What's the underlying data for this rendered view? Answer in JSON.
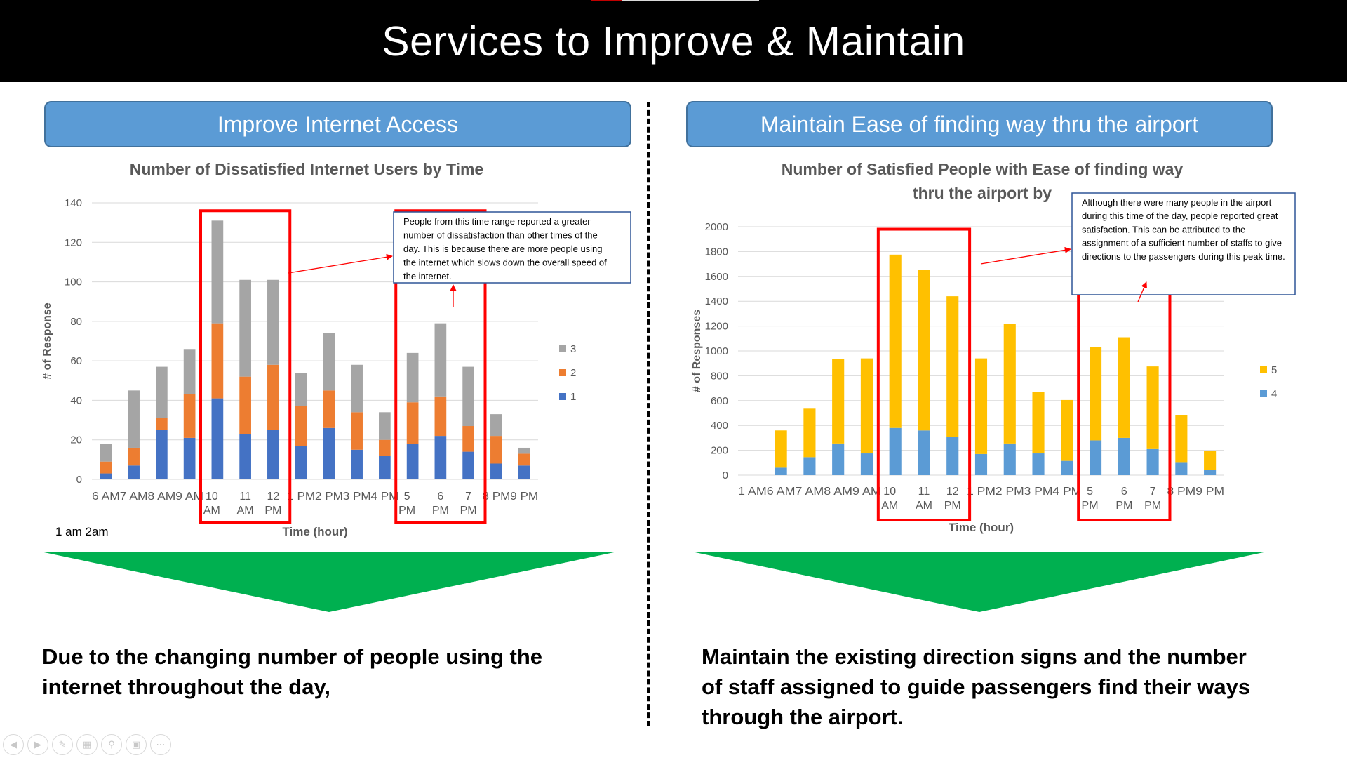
{
  "slide": {
    "title": "Services to Improve & Maintain",
    "left_header": "Improve Internet Access",
    "right_header": "Maintain Ease of finding way thru the airport",
    "left_conclusion": [
      "Due to the changing number of people using the",
      "internet throughout the day,"
    ],
    "right_conclusion": [
      "Maintain the existing direction signs and the number",
      "of staff assigned to guide passengers find their ways",
      "through the airport."
    ],
    "left_footnote": "1 am 2am"
  },
  "colors": {
    "title_bg": "#000000",
    "header_fill": "#5b9bd5",
    "series_1": "#4472c4",
    "series_2": "#ed7d31",
    "series_3": "#a5a5a5",
    "series_4": "#5b9bd5",
    "series_5": "#ffc000",
    "highlight": "#ff0000",
    "arrow_green": "#00b050",
    "callout_border": "#2f5597"
  },
  "nav_icons": [
    "previous-icon",
    "next-icon",
    "pen-icon",
    "slides-icon",
    "zoom-icon",
    "subtitles-icon",
    "more-icon"
  ],
  "chart_data": [
    {
      "type": "bar",
      "stacked": true,
      "title": "Number of Dissatisfied Internet Users by Time",
      "xlabel": "Time (hour)",
      "ylabel": "# of Response",
      "categories": [
        "6 AM",
        "7 AM",
        "8 AM",
        "9 AM",
        "10 AM",
        "11 AM",
        "12 PM",
        "1 PM",
        "2 PM",
        "3 PM",
        "4 PM",
        "5 PM",
        "6 PM",
        "7 PM",
        "8 PM",
        "9 PM"
      ],
      "series": [
        {
          "name": "1",
          "values": [
            3,
            7,
            25,
            21,
            41,
            23,
            25,
            17,
            26,
            15,
            12,
            18,
            22,
            14,
            8,
            7
          ]
        },
        {
          "name": "2",
          "values": [
            6,
            9,
            6,
            22,
            38,
            29,
            33,
            20,
            19,
            19,
            8,
            21,
            20,
            13,
            14,
            6
          ]
        },
        {
          "name": "3",
          "values": [
            9,
            29,
            26,
            23,
            52,
            49,
            43,
            17,
            29,
            24,
            14,
            25,
            37,
            30,
            11,
            3
          ]
        }
      ],
      "ylim": [
        0,
        140
      ],
      "yticks": [
        0,
        20,
        40,
        60,
        80,
        100,
        120,
        140
      ],
      "grid": true,
      "legend": "right",
      "highlights": [
        [
          4,
          6
        ],
        [
          11,
          13
        ]
      ],
      "callout": "People from this time range reported a greater number of dissatisfaction than other times of the day. This is because there are more people using the internet which slows down the overall speed of the internet."
    },
    {
      "type": "bar",
      "stacked": true,
      "title": "Number of Satisfied People with Ease of finding way thru the airport by time",
      "xlabel": "Time (hour)",
      "ylabel": "# of Responses",
      "categories": [
        "1 AM",
        "6 AM",
        "7 AM",
        "8 AM",
        "9 AM",
        "10 AM",
        "11 AM",
        "12 PM",
        "1 PM",
        "2 PM",
        "3 PM",
        "4 PM",
        "5 PM",
        "6 PM",
        "7 PM",
        "8 PM",
        "9 PM"
      ],
      "series": [
        {
          "name": "4",
          "values": [
            0,
            60,
            145,
            255,
            175,
            380,
            360,
            310,
            170,
            255,
            175,
            115,
            280,
            300,
            210,
            105,
            45
          ]
        },
        {
          "name": "5",
          "values": [
            0,
            300,
            390,
            680,
            765,
            1395,
            1290,
            1130,
            770,
            960,
            495,
            490,
            750,
            810,
            665,
            380,
            150
          ]
        }
      ],
      "ylim": [
        0,
        2000
      ],
      "yticks": [
        0,
        200,
        400,
        600,
        800,
        1000,
        1200,
        1400,
        1600,
        1800,
        2000
      ],
      "grid": true,
      "legend": "right",
      "highlights": [
        [
          5,
          7
        ],
        [
          12,
          14
        ]
      ],
      "callout": "Although there were many people in the airport during this time of the day, people reported great satisfaction. This can be attributed to the assignment of a sufficient number of staffs to give directions to the passengers during this peak time."
    }
  ]
}
